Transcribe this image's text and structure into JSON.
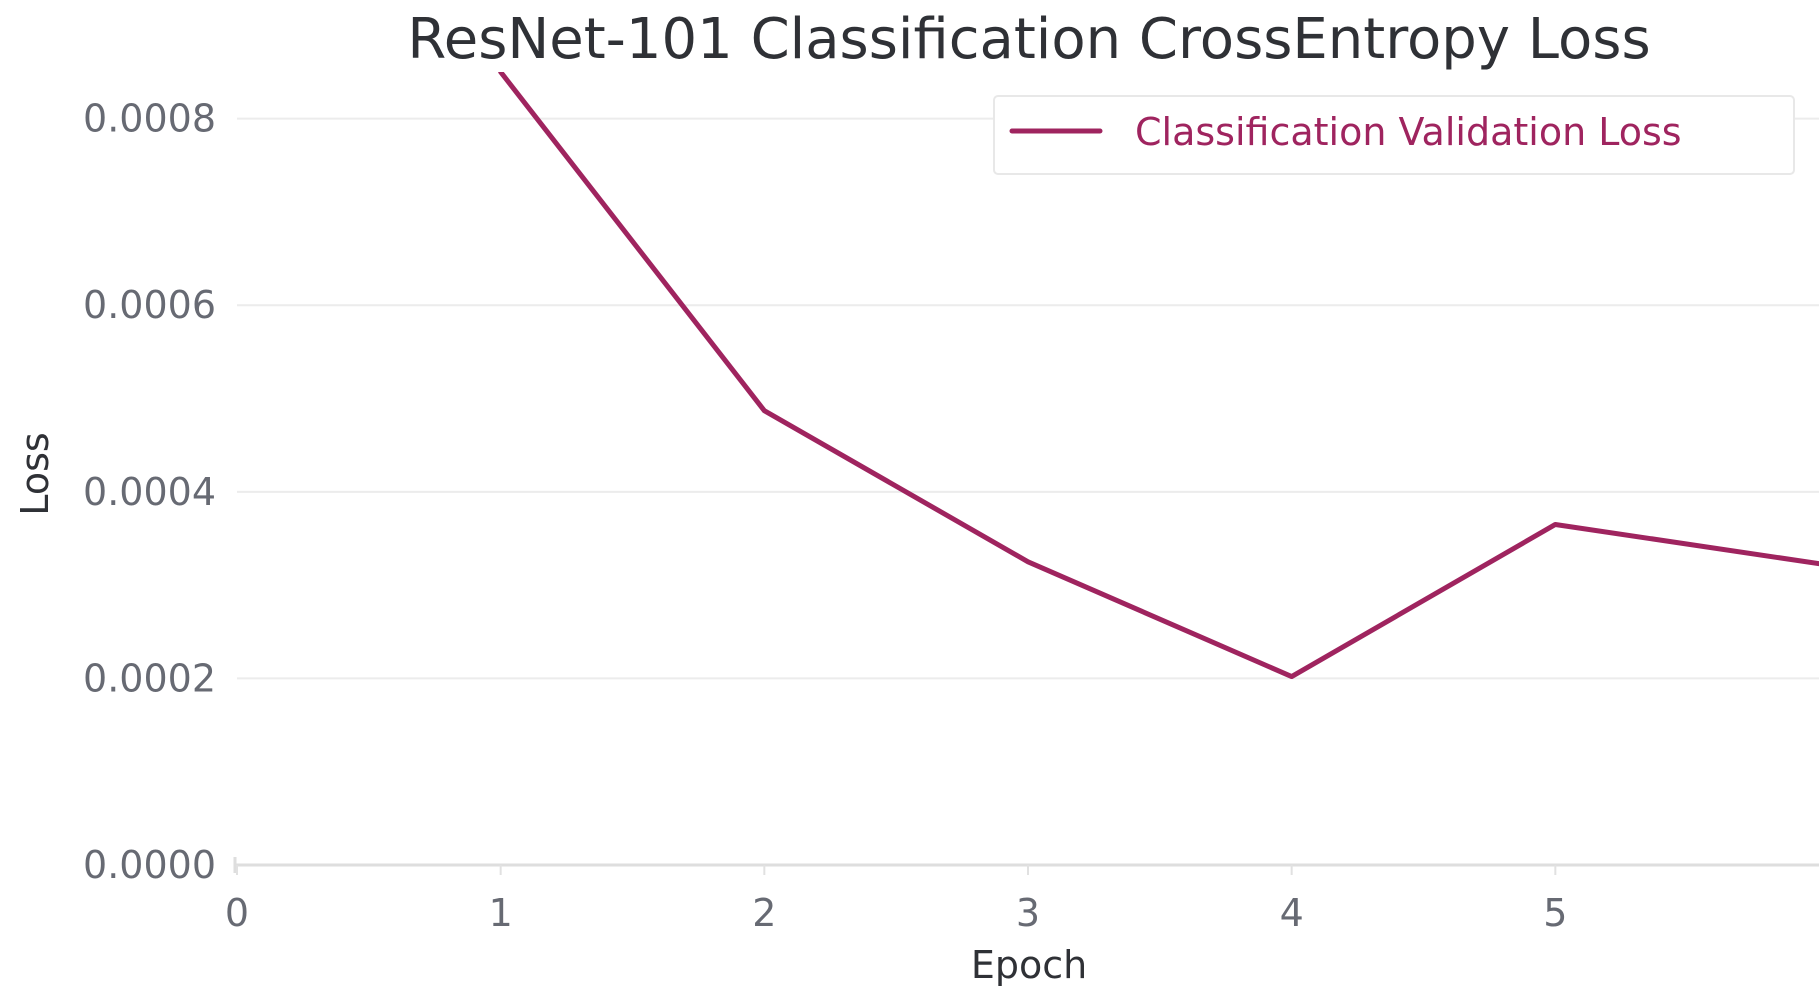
{
  "chart_data": {
    "type": "line",
    "title": "ResNet-101 Classification CrossEntropy Loss",
    "xlabel": "Epoch",
    "ylabel": "Loss",
    "xlim": [
      0,
      6
    ],
    "ylim": [
      0,
      0.00085
    ],
    "x_ticks": [
      "0",
      "1",
      "2",
      "3",
      "4",
      "5"
    ],
    "y_ticks": [
      "0.0000",
      "0.0002",
      "0.0004",
      "0.0006",
      "0.0008"
    ],
    "grid": true,
    "legend_position": "top-right",
    "series": [
      {
        "name": "Classification Validation Loss",
        "color": "#9f245f",
        "x": [
          1,
          2,
          3,
          4,
          5,
          6
        ],
        "y": [
          0.00085,
          0.000487,
          0.000325,
          0.000202,
          0.000365,
          0.000323
        ]
      }
    ]
  },
  "colors": {
    "axis": "#dedede",
    "grid": "#ececec",
    "tick_mark": "#e1e1e1",
    "text_dark": "#2f3136",
    "text_muted": "#676a73",
    "legend_border": "#e8e8e8",
    "series": "#9f245f"
  }
}
